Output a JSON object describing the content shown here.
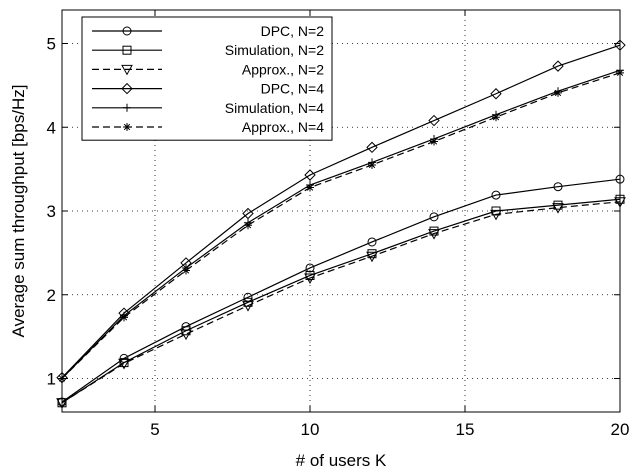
{
  "chart_data": {
    "type": "line",
    "title": "",
    "xlabel": "# of users K",
    "ylabel": "Average sum throughput [bps/Hz]",
    "xlim": [
      2,
      20
    ],
    "ylim": [
      0.6,
      5.4
    ],
    "xticks": [
      5,
      10,
      15,
      20
    ],
    "yticks": [
      1,
      2,
      3,
      4,
      5
    ],
    "grid": true,
    "legend_position": "top-left",
    "x": [
      2,
      4,
      6,
      8,
      10,
      12,
      14,
      16,
      18,
      20
    ],
    "series": [
      {
        "name": "DPC, N=2",
        "marker": "circle",
        "dash": "solid",
        "color": "#000000",
        "values": [
          0.72,
          1.24,
          1.62,
          1.97,
          2.32,
          2.63,
          2.93,
          3.19,
          3.29,
          3.38
        ]
      },
      {
        "name": "Simulation, N=2",
        "marker": "square",
        "dash": "solid",
        "color": "#000000",
        "values": [
          0.71,
          1.19,
          1.57,
          1.91,
          2.23,
          2.49,
          2.76,
          3.0,
          3.07,
          3.14
        ]
      },
      {
        "name": "Approx., N=2",
        "marker": "triangle-down",
        "dash": "dashed",
        "color": "#000000",
        "values": [
          0.71,
          1.18,
          1.53,
          1.87,
          2.2,
          2.46,
          2.73,
          2.96,
          3.04,
          3.11
        ]
      },
      {
        "name": "DPC, N=4",
        "marker": "diamond",
        "dash": "solid",
        "color": "#000000",
        "values": [
          1.01,
          1.78,
          2.38,
          2.97,
          3.43,
          3.76,
          4.08,
          4.4,
          4.73,
          4.98
        ]
      },
      {
        "name": "Simulation, N=4",
        "marker": "plus",
        "dash": "solid",
        "color": "#000000",
        "values": [
          1.0,
          1.75,
          2.32,
          2.86,
          3.31,
          3.58,
          3.86,
          4.15,
          4.43,
          4.68
        ]
      },
      {
        "name": "Approx., N=4",
        "marker": "asterisk",
        "dash": "dashed",
        "color": "#000000",
        "values": [
          1.0,
          1.73,
          2.29,
          2.83,
          3.28,
          3.55,
          3.83,
          4.12,
          4.41,
          4.65
        ]
      }
    ]
  }
}
